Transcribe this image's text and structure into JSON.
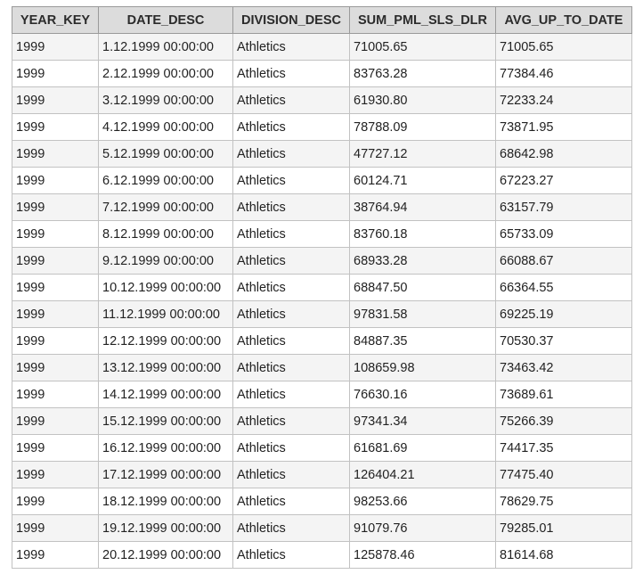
{
  "table": {
    "columns": [
      "YEAR_KEY",
      "DATE_DESC",
      "DIVISION_DESC",
      "SUM_PML_SLS_DLR",
      "AVG_UP_TO_DATE"
    ],
    "rows": [
      [
        "1999",
        "1.12.1999 00:00:00",
        "Athletics",
        "71005.65",
        "71005.65"
      ],
      [
        "1999",
        "2.12.1999 00:00:00",
        "Athletics",
        "83763.28",
        "77384.46"
      ],
      [
        "1999",
        "3.12.1999 00:00:00",
        "Athletics",
        "61930.80",
        "72233.24"
      ],
      [
        "1999",
        "4.12.1999 00:00:00",
        "Athletics",
        "78788.09",
        "73871.95"
      ],
      [
        "1999",
        "5.12.1999 00:00:00",
        "Athletics",
        "47727.12",
        "68642.98"
      ],
      [
        "1999",
        "6.12.1999 00:00:00",
        "Athletics",
        "60124.71",
        "67223.27"
      ],
      [
        "1999",
        "7.12.1999 00:00:00",
        "Athletics",
        "38764.94",
        "63157.79"
      ],
      [
        "1999",
        "8.12.1999 00:00:00",
        "Athletics",
        "83760.18",
        "65733.09"
      ],
      [
        "1999",
        "9.12.1999 00:00:00",
        "Athletics",
        "68933.28",
        "66088.67"
      ],
      [
        "1999",
        "10.12.1999 00:00:00",
        "Athletics",
        "68847.50",
        "66364.55"
      ],
      [
        "1999",
        "11.12.1999 00:00:00",
        "Athletics",
        "97831.58",
        "69225.19"
      ],
      [
        "1999",
        "12.12.1999 00:00:00",
        "Athletics",
        "84887.35",
        "70530.37"
      ],
      [
        "1999",
        "13.12.1999 00:00:00",
        "Athletics",
        "108659.98",
        "73463.42"
      ],
      [
        "1999",
        "14.12.1999 00:00:00",
        "Athletics",
        "76630.16",
        "73689.61"
      ],
      [
        "1999",
        "15.12.1999 00:00:00",
        "Athletics",
        "97341.34",
        "75266.39"
      ],
      [
        "1999",
        "16.12.1999 00:00:00",
        "Athletics",
        "61681.69",
        "74417.35"
      ],
      [
        "1999",
        "17.12.1999 00:00:00",
        "Athletics",
        "126404.21",
        "77475.40"
      ],
      [
        "1999",
        "18.12.1999 00:00:00",
        "Athletics",
        "98253.66",
        "78629.75"
      ],
      [
        "1999",
        "19.12.1999 00:00:00",
        "Athletics",
        "91079.76",
        "79285.01"
      ],
      [
        "1999",
        "20.12.1999 00:00:00",
        "Athletics",
        "125878.46",
        "81614.68"
      ]
    ]
  }
}
